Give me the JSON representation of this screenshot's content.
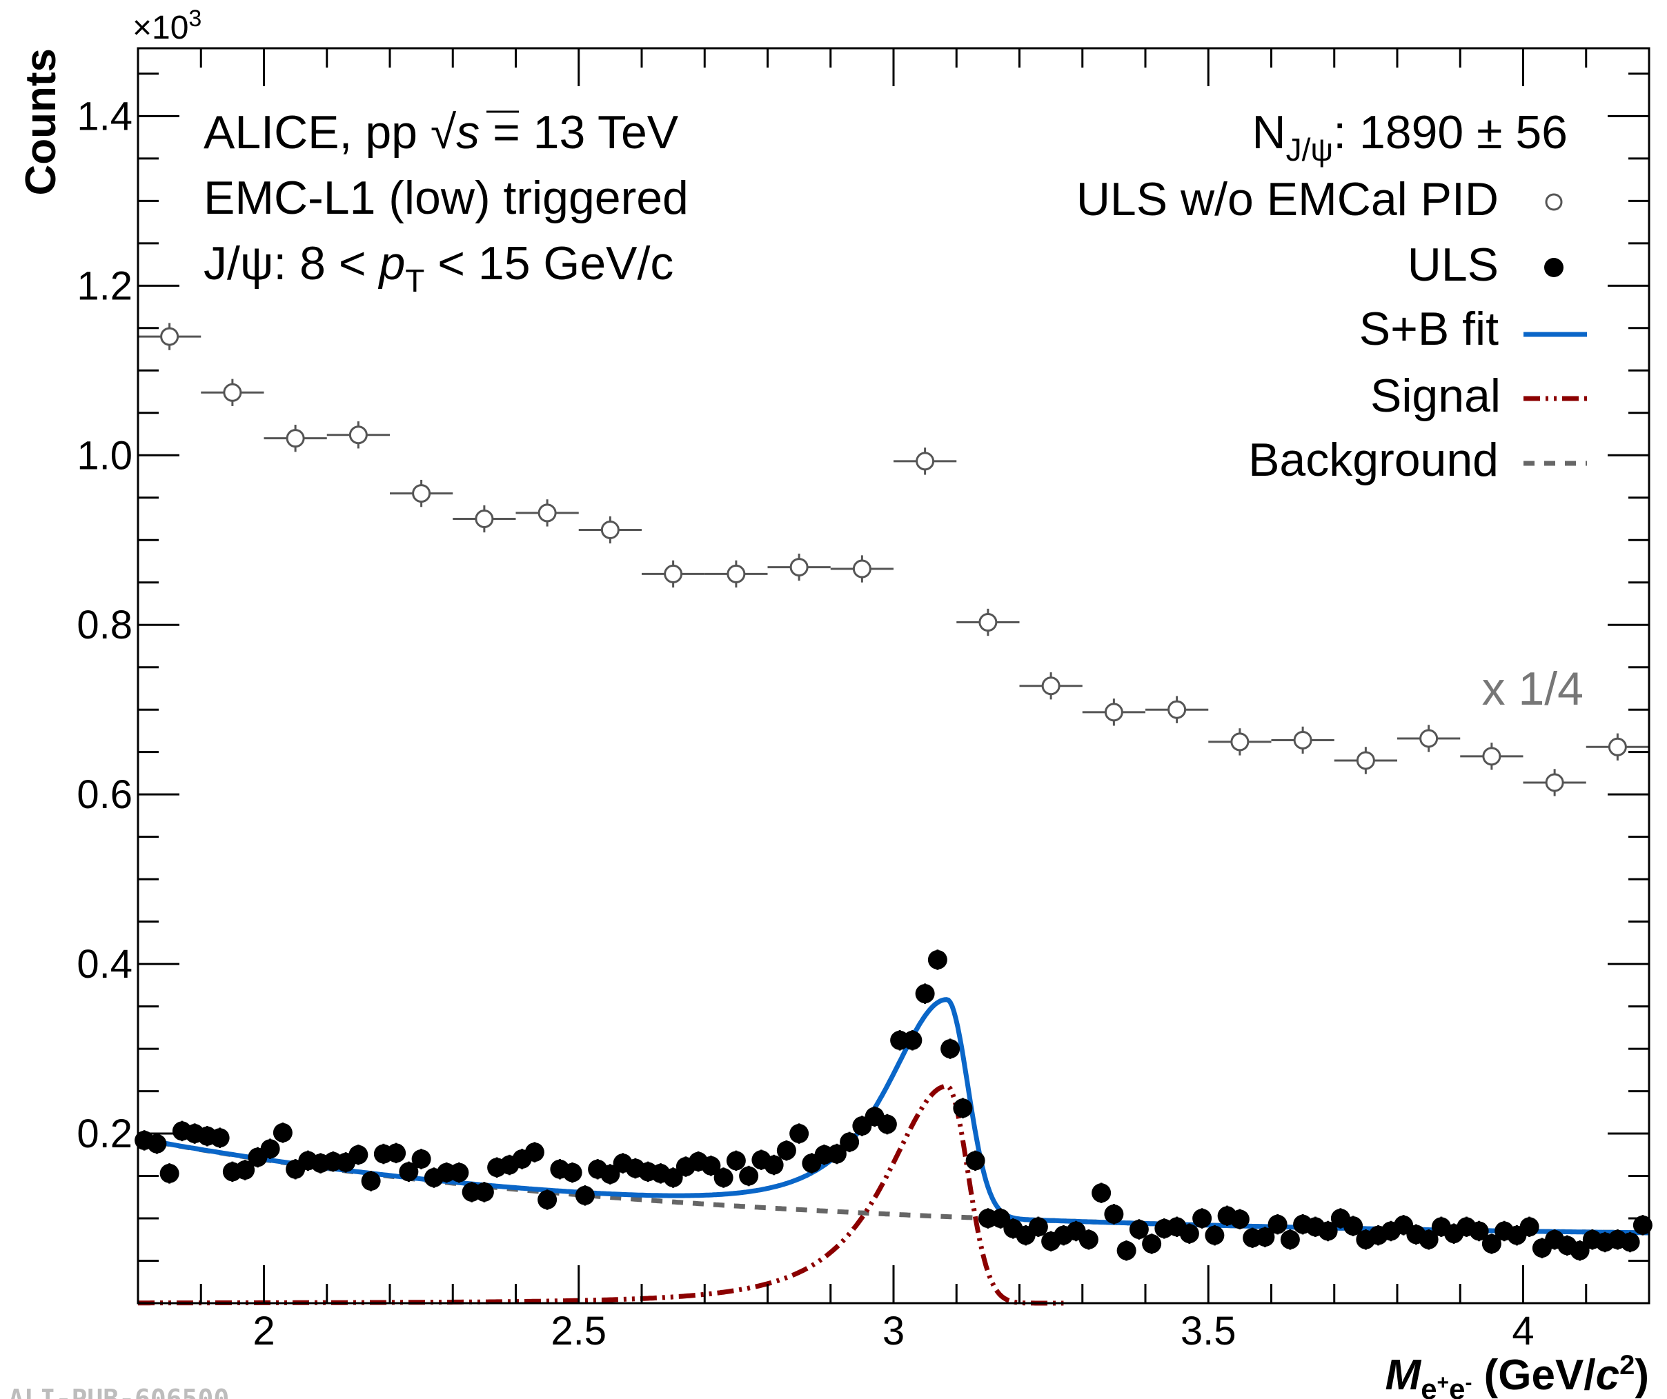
{
  "chart_data": {
    "type": "scatter",
    "xlim": [
      1.8,
      4.2
    ],
    "ylim": [
      0,
      1.48
    ],
    "y_multiplier_label": {
      "base": "×10",
      "exponent": "3"
    },
    "ylabel": "Counts",
    "xlabel": {
      "symbol": "M",
      "subscript_parts": [
        "e",
        "+",
        "e",
        "-"
      ],
      "units_open": " (GeV/",
      "units_c": "c",
      "units_exp": "2",
      "units_close": ")"
    },
    "x_ticks": [
      {
        "value": 2,
        "label": "2"
      },
      {
        "value": 2.5,
        "label": "2.5"
      },
      {
        "value": 3,
        "label": "3"
      },
      {
        "value": 3.5,
        "label": "3.5"
      },
      {
        "value": 4,
        "label": "4"
      }
    ],
    "y_ticks": [
      {
        "value": 0.2,
        "label": "0.2"
      },
      {
        "value": 0.4,
        "label": "0.4"
      },
      {
        "value": 0.6,
        "label": "0.6"
      },
      {
        "value": 0.8,
        "label": "0.8"
      },
      {
        "value": 1.0,
        "label": "1.0"
      },
      {
        "value": 1.2,
        "label": "1.2"
      },
      {
        "value": 1.4,
        "label": "1.4"
      }
    ],
    "grid": false,
    "legend_position": "top-right",
    "annotations": {
      "line1": {
        "prefix": "ALICE, pp  ",
        "sqrt": "√",
        "s": "s",
        "suffix": " = 13 TeV"
      },
      "line2": "EMC-L1 (low) triggered",
      "line3": {
        "prefix": "J/ψ: 8 < ",
        "pt": "p",
        "pt_sub": "T",
        "suffix": " < 15 GeV/c"
      },
      "yield": {
        "n": "N",
        "sub": "J/ψ",
        "text": ": 1890 ± 56"
      },
      "scale": "x 1/4"
    },
    "series": [
      {
        "name": "ULS w/o EMCal PID",
        "marker": "open-circle",
        "color": "#555555",
        "x_half_width": 0.05,
        "x": [
          1.85,
          1.95,
          2.05,
          2.15,
          2.25,
          2.35,
          2.45,
          2.55,
          2.65,
          2.75,
          2.85,
          2.95,
          3.05,
          3.15,
          3.25,
          3.35,
          3.45,
          3.55,
          3.65,
          3.75,
          3.85,
          3.95,
          4.05,
          4.15
        ],
        "y": [
          1.14,
          1.074,
          1.02,
          1.024,
          0.955,
          0.925,
          0.932,
          0.912,
          0.86,
          0.86,
          0.868,
          0.866,
          0.993,
          0.803,
          0.728,
          0.697,
          0.7,
          0.662,
          0.664,
          0.64,
          0.666,
          0.645,
          0.614,
          0.656
        ],
        "y_err": 0.016
      },
      {
        "name": "ULS",
        "marker": "filled-circle",
        "color": "#000000",
        "x": [
          1.81,
          1.83,
          1.85,
          1.87,
          1.89,
          1.91,
          1.93,
          1.95,
          1.97,
          1.99,
          2.01,
          2.03,
          2.05,
          2.07,
          2.09,
          2.11,
          2.13,
          2.15,
          2.17,
          2.19,
          2.21,
          2.23,
          2.25,
          2.27,
          2.29,
          2.31,
          2.33,
          2.35,
          2.37,
          2.39,
          2.41,
          2.43,
          2.45,
          2.47,
          2.49,
          2.51,
          2.53,
          2.55,
          2.57,
          2.59,
          2.61,
          2.63,
          2.65,
          2.67,
          2.69,
          2.71,
          2.73,
          2.75,
          2.77,
          2.79,
          2.81,
          2.83,
          2.85,
          2.87,
          2.89,
          2.91,
          2.93,
          2.95,
          2.97,
          2.99,
          3.01,
          3.03,
          3.05,
          3.07,
          3.09,
          3.11,
          3.13,
          3.15,
          3.17,
          3.19,
          3.21,
          3.23,
          3.25,
          3.27,
          3.29,
          3.31,
          3.33,
          3.35,
          3.37,
          3.39,
          3.41,
          3.43,
          3.45,
          3.47,
          3.49,
          3.51,
          3.53,
          3.55,
          3.57,
          3.59,
          3.61,
          3.63,
          3.65,
          3.67,
          3.69,
          3.71,
          3.73,
          3.75,
          3.77,
          3.79,
          3.81,
          3.83,
          3.85,
          3.87,
          3.89,
          3.91,
          3.93,
          3.95,
          3.97,
          3.99,
          4.01,
          4.03,
          4.05,
          4.07,
          4.09,
          4.11,
          4.13,
          4.15,
          4.17,
          4.19
        ],
        "y": [
          0.192,
          0.188,
          0.153,
          0.203,
          0.2,
          0.197,
          0.195,
          0.155,
          0.157,
          0.172,
          0.182,
          0.201,
          0.158,
          0.168,
          0.165,
          0.167,
          0.166,
          0.175,
          0.144,
          0.176,
          0.177,
          0.155,
          0.17,
          0.148,
          0.154,
          0.154,
          0.131,
          0.131,
          0.16,
          0.163,
          0.17,
          0.178,
          0.122,
          0.158,
          0.154,
          0.127,
          0.158,
          0.152,
          0.165,
          0.159,
          0.155,
          0.153,
          0.148,
          0.161,
          0.167,
          0.162,
          0.148,
          0.168,
          0.15,
          0.169,
          0.163,
          0.18,
          0.2,
          0.165,
          0.175,
          0.176,
          0.19,
          0.209,
          0.22,
          0.211,
          0.31,
          0.31,
          0.365,
          0.405,
          0.3,
          0.23,
          0.168,
          0.1,
          0.1,
          0.088,
          0.08,
          0.09,
          0.073,
          0.08,
          0.085,
          0.075,
          0.13,
          0.105,
          0.062,
          0.087,
          0.07,
          0.088,
          0.09,
          0.082,
          0.1,
          0.08,
          0.103,
          0.099,
          0.077,
          0.078,
          0.093,
          0.075,
          0.093,
          0.09,
          0.085,
          0.1,
          0.091,
          0.075,
          0.08,
          0.085,
          0.092,
          0.081,
          0.075,
          0.09,
          0.082,
          0.09,
          0.085,
          0.07,
          0.085,
          0.08,
          0.09,
          0.065,
          0.075,
          0.068,
          0.062,
          0.075,
          0.072,
          0.075,
          0.072,
          0.092
        ],
        "y_err": 0.012
      },
      {
        "name": "S+B fit",
        "style": "solid",
        "color": "#0a66c8"
      },
      {
        "name": "Signal",
        "style": "dash-dot-dot",
        "color": "#8b0000"
      },
      {
        "name": "Background",
        "style": "dashed",
        "color": "#666666"
      }
    ]
  },
  "footer": {
    "id": "ALI-PUB-606500"
  }
}
